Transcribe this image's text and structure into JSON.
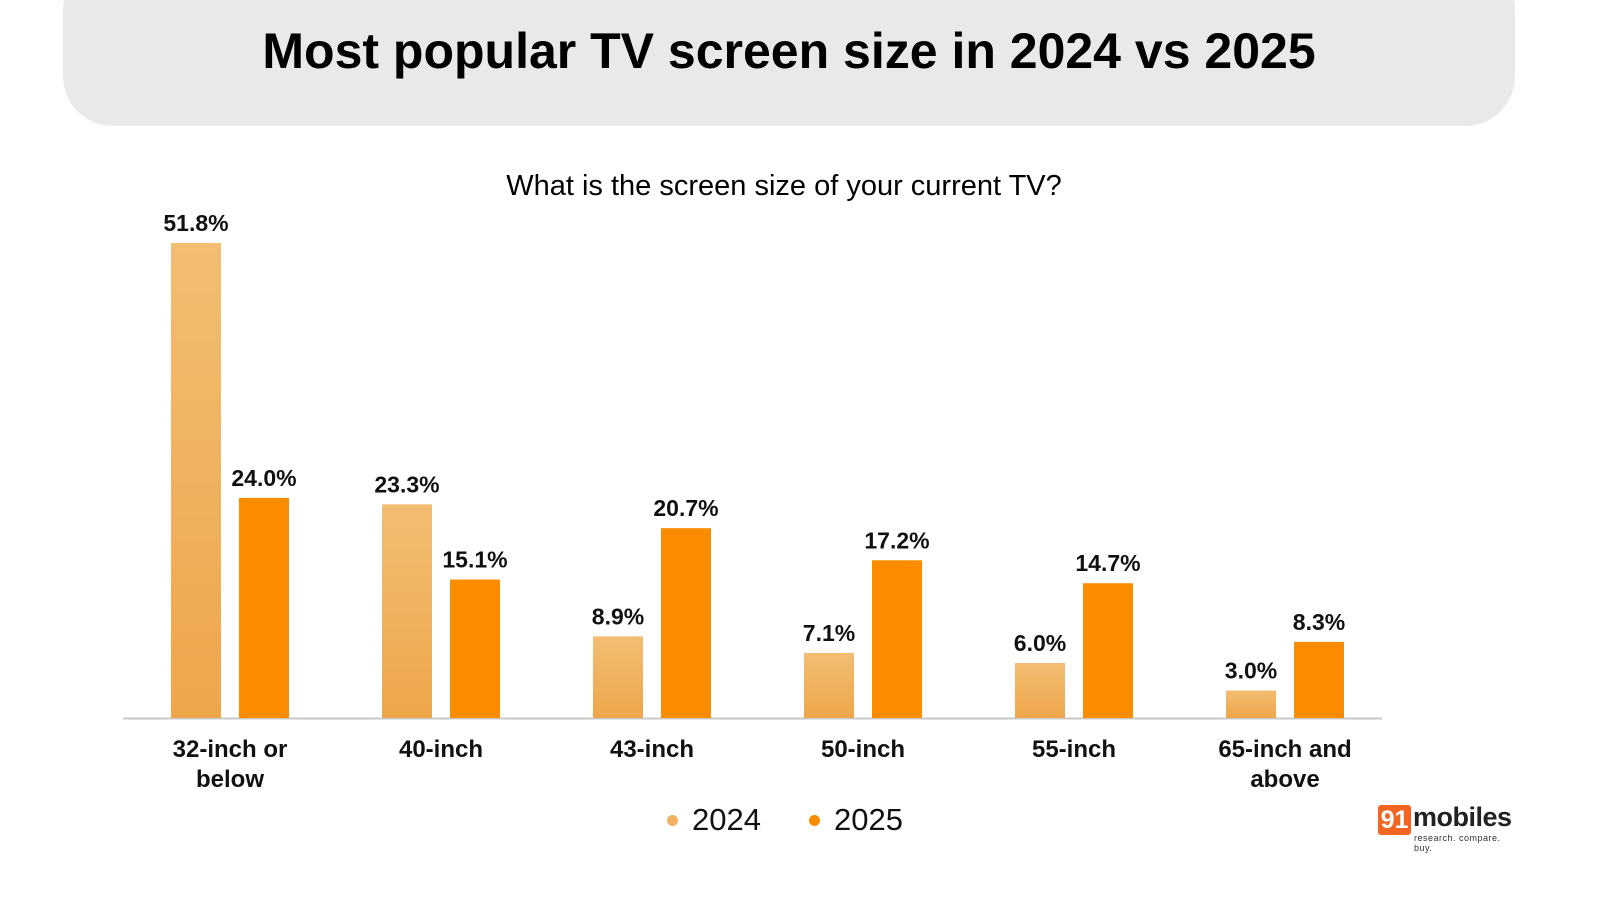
{
  "header": {
    "title": "Most popular TV screen size in 2024 vs 2025"
  },
  "logo": {
    "badge": "91",
    "word": "mobiles",
    "tagline": "research. compare. buy."
  },
  "chart_data": {
    "type": "bar",
    "title": "Most popular TV screen size in 2024 vs 2025",
    "subtitle": "What is the screen size of your current TV?",
    "categories": [
      "32-inch or below",
      "40-inch",
      "43-inch",
      "50-inch",
      "55-inch",
      "65-inch and above"
    ],
    "category_lines": [
      [
        "32-inch or",
        "below"
      ],
      [
        "40-inch"
      ],
      [
        "43-inch"
      ],
      [
        "50-inch"
      ],
      [
        "55-inch"
      ],
      [
        "65-inch and",
        "above"
      ]
    ],
    "series": [
      {
        "name": "2024",
        "color": "#f0b25e",
        "values": [
          51.8,
          23.3,
          8.9,
          7.1,
          6.0,
          3.0
        ],
        "labels": [
          "51.8%",
          "23.3%",
          "8.9%",
          "7.1%",
          "6.0%",
          "3.0%"
        ]
      },
      {
        "name": "2025",
        "color": "#fb8c00",
        "values": [
          24.0,
          15.1,
          20.7,
          17.2,
          14.7,
          8.3
        ],
        "labels": [
          "24.0%",
          "15.1%",
          "20.7%",
          "17.2%",
          "14.7%",
          "8.3%"
        ]
      }
    ],
    "xlabel": "",
    "ylabel": "",
    "ylim": [
      0,
      51.8
    ],
    "grid": false,
    "legend": "bottom-center",
    "unit": "%"
  }
}
